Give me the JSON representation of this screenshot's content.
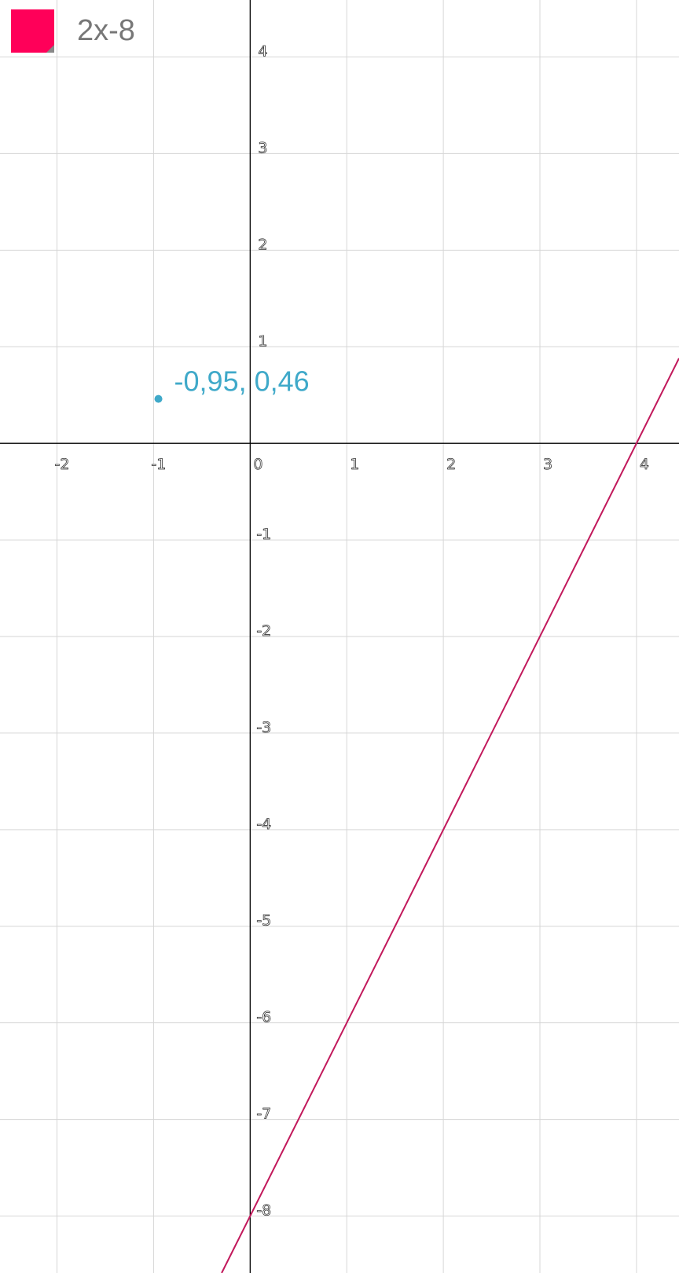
{
  "chart_data": {
    "type": "line",
    "title": "",
    "xlabel": "",
    "ylabel": "",
    "xlim": [
      -2.59,
      4.44
    ],
    "ylim": [
      -8.59,
      4.59
    ],
    "grid": true,
    "x_ticks": [
      -2,
      -1,
      0,
      1,
      2,
      3,
      4
    ],
    "y_ticks": [
      4,
      3,
      2,
      1,
      -1,
      -2,
      -3,
      -4,
      -5,
      -6,
      -7,
      -8
    ],
    "series": [
      {
        "name": "2x-8",
        "expression": "2x-8",
        "slope": 2,
        "intercept": -8,
        "color": "#c2185b"
      }
    ],
    "legend": {
      "label": "2x-8",
      "swatch_color": "#ff0059",
      "placement": "top-left"
    },
    "points": [
      {
        "x": -0.95,
        "y": 0.46,
        "label": "-0,95, 0,46",
        "color": "#3fa9c9"
      }
    ]
  }
}
